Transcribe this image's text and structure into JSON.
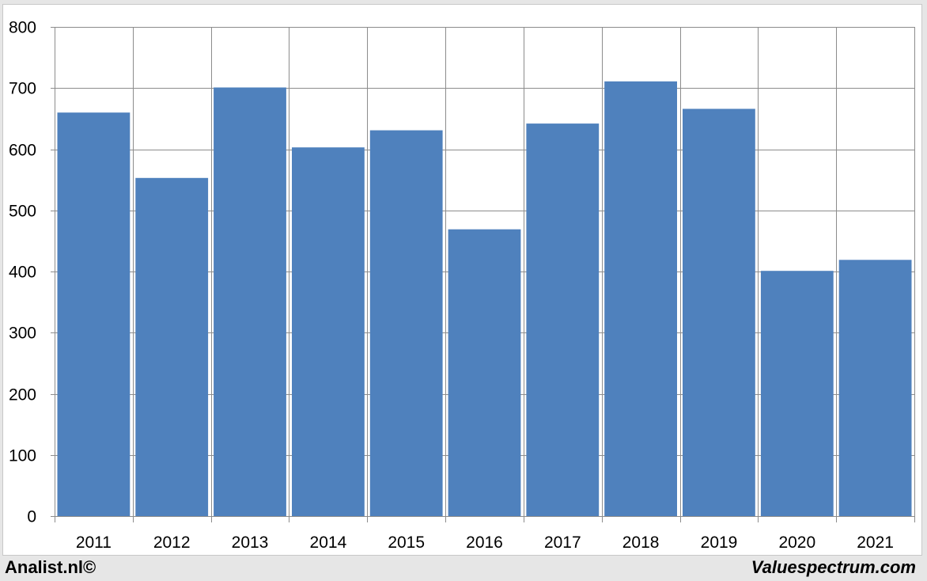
{
  "colors": {
    "bar": "#4f81bd",
    "grid": "#8c8c8c",
    "plot_background": "#ffffff",
    "page_background": "#e6e6e6"
  },
  "footer": {
    "left_text": "Analist.nl©",
    "right_text": "Valuespectrum.com"
  },
  "chart_data": {
    "type": "bar",
    "title": "",
    "xlabel": "",
    "ylabel": "",
    "categories": [
      "2011",
      "2012",
      "2013",
      "2014",
      "2015",
      "2016",
      "2017",
      "2018",
      "2019",
      "2020",
      "2021"
    ],
    "values": [
      660,
      553,
      701,
      603,
      631,
      469,
      642,
      711,
      666,
      401,
      419
    ],
    "ylim": [
      0,
      800
    ],
    "yticks": [
      0,
      100,
      200,
      300,
      400,
      500,
      600,
      700,
      800
    ],
    "grid": true,
    "legend": "none"
  }
}
